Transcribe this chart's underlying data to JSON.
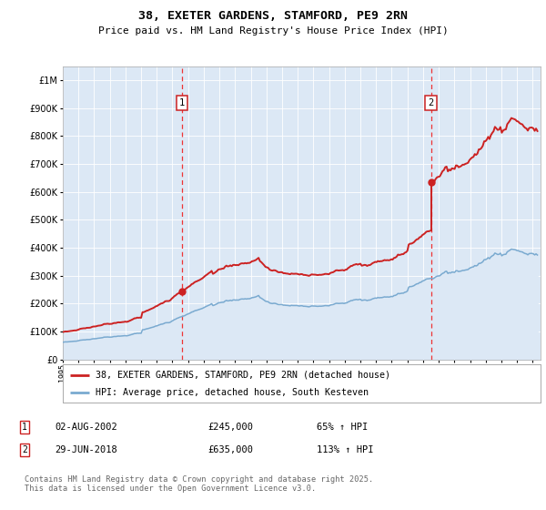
{
  "title1": "38, EXETER GARDENS, STAMFORD, PE9 2RN",
  "title2": "Price paid vs. HM Land Registry's House Price Index (HPI)",
  "legend1": "38, EXETER GARDENS, STAMFORD, PE9 2RN (detached house)",
  "legend2": "HPI: Average price, detached house, South Kesteven",
  "annotation1_label": "1",
  "annotation1_date": "02-AUG-2002",
  "annotation1_price": "£245,000",
  "annotation1_hpi": "65% ↑ HPI",
  "annotation2_label": "2",
  "annotation2_date": "29-JUN-2018",
  "annotation2_price": "£635,000",
  "annotation2_hpi": "113% ↑ HPI",
  "footer": "Contains HM Land Registry data © Crown copyright and database right 2025.\nThis data is licensed under the Open Government Licence v3.0.",
  "vline1_x": 2002.6,
  "vline2_x": 2018.5,
  "sale1_x": 2002.6,
  "sale1_y": 245000,
  "sale2_x": 2018.5,
  "sale2_y": 635000,
  "xlim": [
    1995.0,
    2025.5
  ],
  "ylim": [
    0,
    1050000
  ],
  "hpi_color": "#7aaad0",
  "price_color": "#cc2222",
  "vline_color": "#ee3333",
  "dot_color": "#cc2222",
  "bg_color": "#dce8f5",
  "grid_color": "#ffffff"
}
